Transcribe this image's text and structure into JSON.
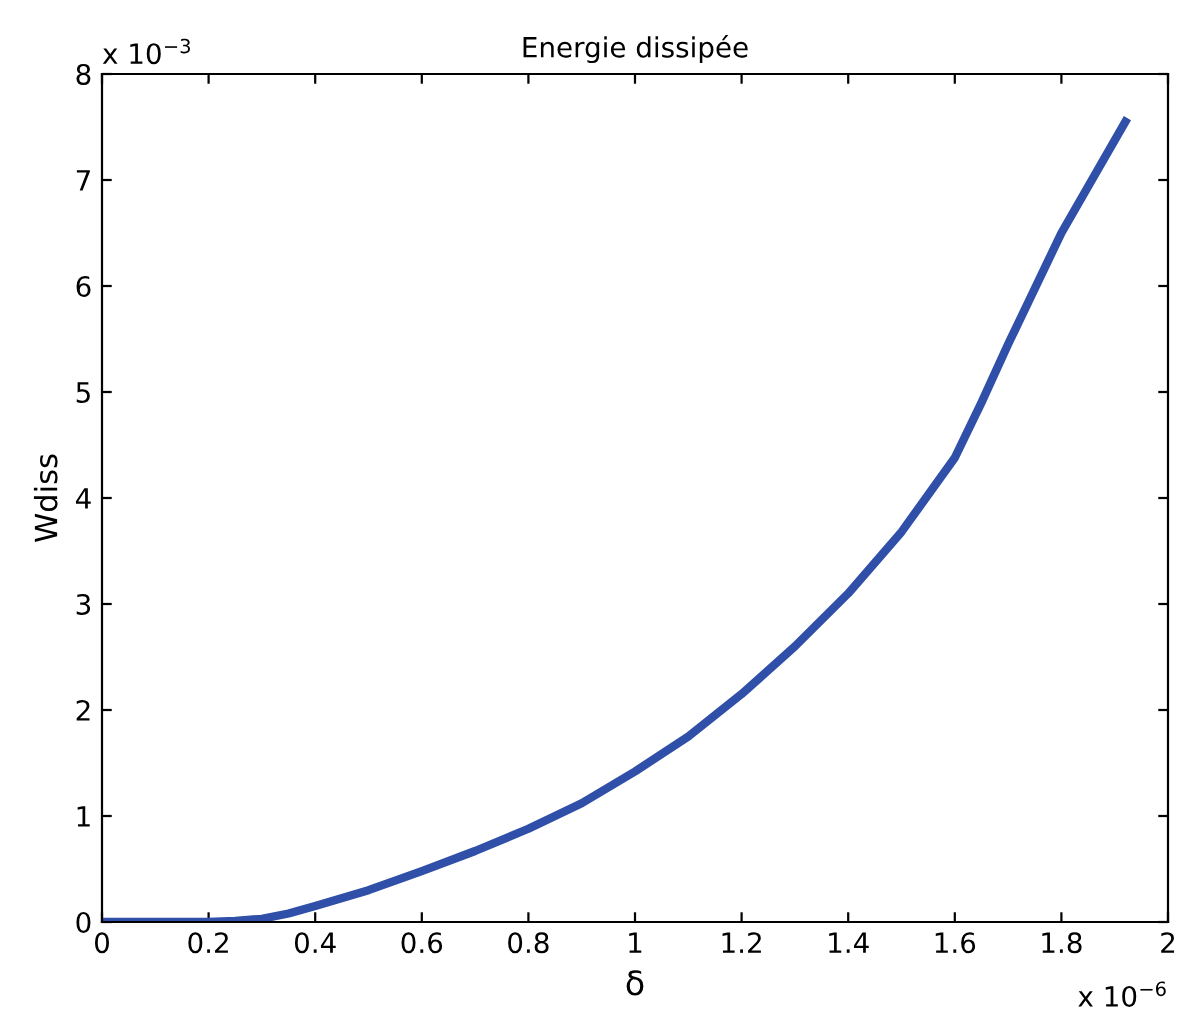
{
  "chart_data": {
    "type": "line",
    "title": "Energie dissipée",
    "xlabel": "δ",
    "ylabel": "Wdiss",
    "annotations": [
      "x 10$^{−3}$",
      "x 10$^{−6}$"
    ],
    "x": [
      0,
      0.1,
      0.2,
      0.25,
      0.3,
      0.35,
      0.4,
      0.5,
      0.6,
      0.7,
      0.8,
      0.9,
      1.0,
      1.1,
      1.2,
      1.3,
      1.4,
      1.5,
      1.6,
      1.65,
      1.7,
      1.8,
      1.92
    ],
    "series": [
      {
        "color": "#2f4fa8",
        "values": [
          0,
          0,
          0,
          0.01,
          0.03,
          0.08,
          0.15,
          0.3,
          0.48,
          0.67,
          0.88,
          1.12,
          1.42,
          1.75,
          2.15,
          2.6,
          3.1,
          3.68,
          4.38,
          4.9,
          5.45,
          6.5,
          7.55
        ]
      }
    ],
    "xlim": [
      0,
      2
    ],
    "ylim": [
      0,
      8
    ],
    "xticks": [
      0,
      0.2,
      0.4,
      0.6,
      0.8,
      1,
      1.2,
      1.4,
      1.6,
      1.8,
      2
    ],
    "yticks": [
      0,
      1,
      2,
      3,
      4,
      5,
      6,
      7,
      8
    ],
    "grid": false,
    "legend": false,
    "marker": "none",
    "line_style": "solid"
  }
}
